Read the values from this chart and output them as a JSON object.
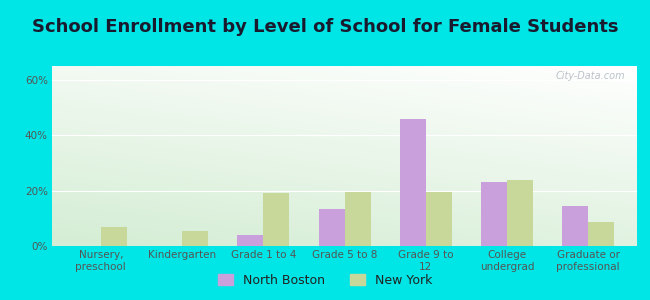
{
  "title": "School Enrollment by Level of School for Female Students",
  "categories": [
    "Nursery,\npreschool",
    "Kindergarten",
    "Grade 1 to 4",
    "Grade 5 to 8",
    "Grade 9 to\n12",
    "College\nundergrad",
    "Graduate or\nprofessional"
  ],
  "north_boston": [
    0.0,
    0.0,
    4.0,
    13.5,
    46.0,
    23.0,
    14.5
  ],
  "new_york": [
    7.0,
    5.5,
    19.0,
    19.5,
    19.5,
    24.0,
    8.5
  ],
  "north_boston_color": "#c9a0dc",
  "new_york_color": "#c8d89a",
  "background_color": "#00e5e5",
  "plot_bg_color": "#eaf5e8",
  "ylim": [
    0,
    65
  ],
  "yticks": [
    0,
    20,
    40,
    60
  ],
  "ytick_labels": [
    "0%",
    "20%",
    "40%",
    "60%"
  ],
  "title_fontsize": 13,
  "tick_fontsize": 7.5,
  "legend_fontsize": 9,
  "bar_width": 0.32,
  "watermark": "City-Data.com"
}
